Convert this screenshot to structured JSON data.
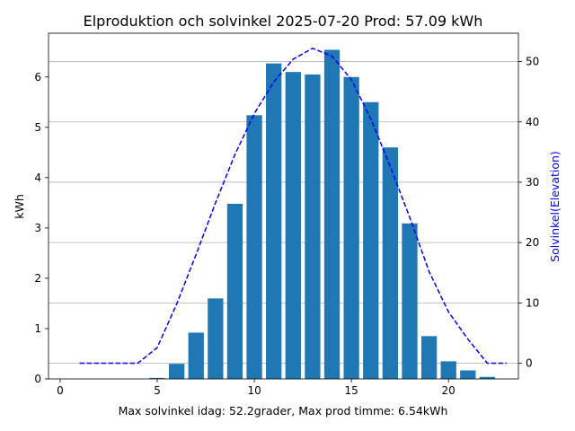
{
  "chart_data": {
    "type": "bar",
    "title": "Elproduktion och solvinkel 2025-07-20 Prod: 57.09 kWh",
    "xlabel": "Max solvinkel idag: 52.2grader, Max prod timme: 6.54kWh",
    "ylabel": "kWh",
    "y2label": "Solvinkel(Elevation)",
    "xlim": [
      -0.6,
      23.6
    ],
    "ylim": [
      0,
      6.87
    ],
    "y2lim": [
      -2.6,
      54.7
    ],
    "xticks": [
      0,
      5,
      10,
      15,
      20
    ],
    "yticks": [
      0,
      1,
      2,
      3,
      4,
      5,
      6
    ],
    "y2ticks": [
      0,
      10,
      20,
      30,
      40,
      50
    ],
    "y2grid": [
      0,
      10,
      20,
      30,
      40,
      50
    ],
    "bar_color": "#1f77b4",
    "line_color": "#0000ff",
    "line_style": "dashed",
    "grid": "horizontal, secondary axis",
    "series": [
      {
        "axis": "left",
        "type": "bar",
        "x": [
          5,
          6,
          7,
          8,
          9,
          10,
          11,
          12,
          13,
          14,
          15,
          16,
          17,
          18,
          19,
          20,
          21,
          22
        ],
        "values": [
          0.02,
          0.3,
          0.92,
          1.6,
          3.48,
          5.24,
          6.27,
          6.1,
          6.05,
          6.54,
          6.0,
          5.5,
          4.6,
          3.09,
          0.85,
          0.35,
          0.17,
          0.04
        ]
      },
      {
        "axis": "right",
        "type": "line",
        "x": [
          1,
          2,
          3,
          4,
          5,
          6,
          7,
          8,
          9,
          10,
          11,
          12,
          13,
          14,
          15,
          16,
          17,
          18,
          19,
          20,
          21,
          22,
          23
        ],
        "values": [
          0,
          0,
          0,
          0,
          2.6,
          9.8,
          18.0,
          26.6,
          34.6,
          41.4,
          46.6,
          50.4,
          52.2,
          50.9,
          47.0,
          40.5,
          32.6,
          24.2,
          15.2,
          8.5,
          4.0,
          0,
          0
        ]
      }
    ]
  }
}
